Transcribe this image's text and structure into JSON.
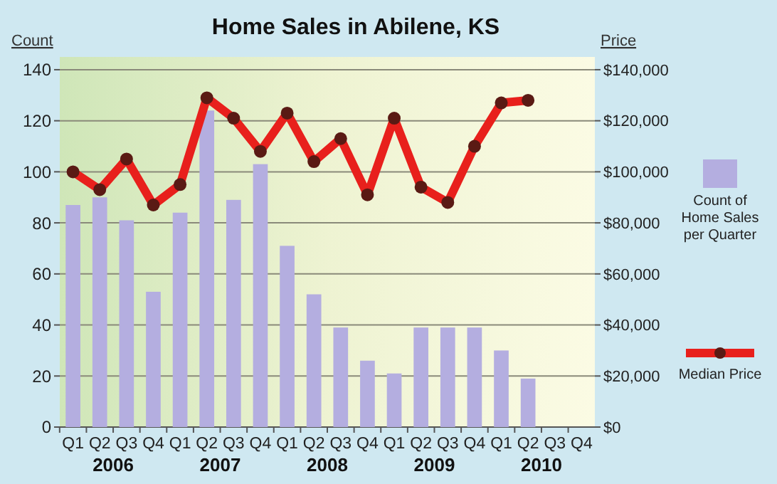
{
  "chart_data": {
    "type": "bar",
    "title": "Home Sales in Abilene, KS",
    "ylabel": "Count",
    "y2label": "Price",
    "categories": [
      "Q1",
      "Q2",
      "Q3",
      "Q4",
      "Q1",
      "Q2",
      "Q3",
      "Q4",
      "Q1",
      "Q2",
      "Q3",
      "Q4",
      "Q1",
      "Q2",
      "Q3",
      "Q4",
      "Q1",
      "Q2",
      "Q3",
      "Q4"
    ],
    "series": [
      {
        "name": "Count of Home Sales per Quarter",
        "color": "#b4aee0",
        "values": [
          87,
          90,
          81,
          53,
          84,
          124,
          89,
          103,
          71,
          52,
          39,
          26,
          21,
          39,
          39,
          39,
          30,
          19,
          null,
          null
        ]
      },
      {
        "name": "Median Price",
        "type": "line",
        "axis": "y2",
        "color": "#e8201c",
        "marker": "circle",
        "values": [
          100000,
          93000,
          105000,
          87000,
          95000,
          129000,
          121000,
          108000,
          123000,
          104000,
          113000,
          91000,
          121000,
          94000,
          88000,
          110000,
          127000,
          128000,
          null,
          null
        ]
      }
    ],
    "ylim": [
      0,
      145
    ],
    "yticks": [
      0,
      20,
      40,
      60,
      80,
      100,
      120,
      140
    ],
    "y2lim": [
      0,
      145000
    ],
    "y2ticks": [
      {
        "value": 0,
        "label": "$0"
      },
      {
        "value": 20000,
        "label": "$20,000"
      },
      {
        "value": 40000,
        "label": "$40,000"
      },
      {
        "value": 60000,
        "label": "$60,000"
      },
      {
        "value": 80000,
        "label": "$80,000"
      },
      {
        "value": 100000,
        "label": "$100,000"
      },
      {
        "value": 120000,
        "label": "$120,000"
      },
      {
        "value": 140000,
        "label": "$140,000"
      }
    ],
    "annotations": [
      "2006",
      "2007",
      "2008",
      "2009",
      "2010"
    ],
    "grid": "y",
    "legend": "right"
  }
}
